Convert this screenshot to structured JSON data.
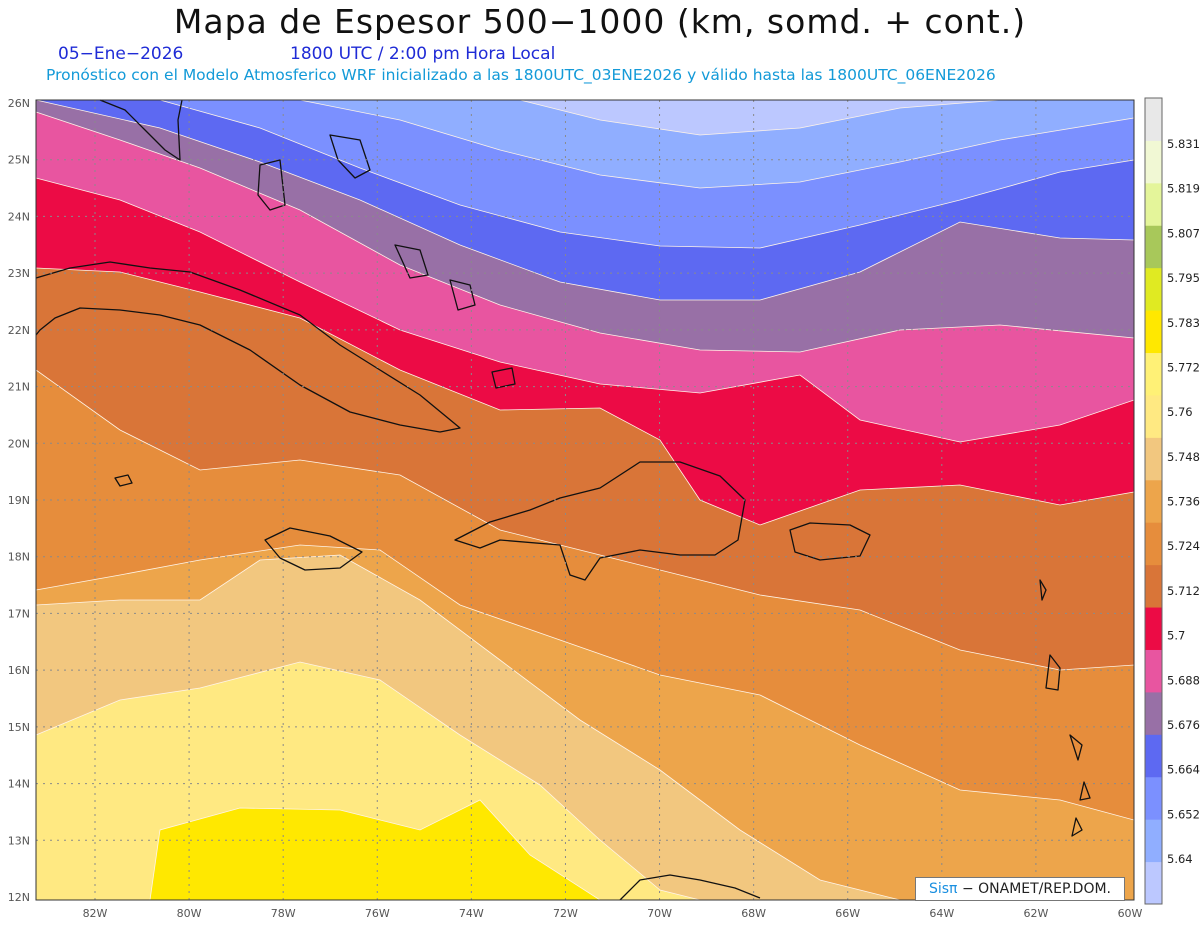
{
  "header": {
    "title": "Mapa de Espesor 500−1000 (km, somd. + cont.)",
    "date": "05−Ene−2026",
    "time": "1800 UTC / 2:00 pm Hora Local",
    "forecast": "Pronóstico con el Modelo Atmosferico WRF inicializado a las 1800UTC_03ENE2026 y válido hasta las  1800UTC_06ENE2026"
  },
  "axes": {
    "lat_labels": [
      "26N",
      "25N",
      "24N",
      "23N",
      "22N",
      "21N",
      "20N",
      "19N",
      "18N",
      "17N",
      "16N",
      "15N",
      "14N",
      "13N",
      "12N"
    ],
    "lon_labels": [
      "82W",
      "80W",
      "78W",
      "76W",
      "74W",
      "72W",
      "70W",
      "68W",
      "66W",
      "64W",
      "62W",
      "60W"
    ]
  },
  "colorbar": {
    "labels": [
      "5.831",
      "5.819",
      "5.807",
      "5.795",
      "5.783",
      "5.772",
      "5.76",
      "5.748",
      "5.736",
      "5.724",
      "5.712",
      "5.7",
      "5.688",
      "5.676",
      "5.664",
      "5.652",
      "5.64"
    ],
    "colors": [
      "#bcc8ff",
      "#90aeff",
      "#7b90ff",
      "#5d69f2",
      "#9870a6",
      "#e855a0",
      "#ec0b45",
      "#d97538",
      "#e68d3c",
      "#eda54b",
      "#f2c77f",
      "#ffe982",
      "#fff176",
      "#ffe800",
      "#e0ea22",
      "#a8c85a",
      "#e4f59a",
      "#f1f8d4",
      "#e8e8e8"
    ]
  },
  "bands": [
    {
      "color": "#bcc8ff",
      "top": [
        [
          36,
          100
        ],
        [
          1134,
          100
        ]
      ]
    },
    {
      "color": "#90aeff",
      "top": [
        [
          36,
          100
        ],
        [
          520,
          100
        ],
        [
          600,
          120
        ],
        [
          700,
          135
        ],
        [
          800,
          128
        ],
        [
          900,
          108
        ],
        [
          1000,
          100
        ],
        [
          1134,
          100
        ]
      ]
    },
    {
      "color": "#7b90ff",
      "top": [
        [
          36,
          100
        ],
        [
          300,
          100
        ],
        [
          400,
          120
        ],
        [
          500,
          150
        ],
        [
          600,
          175
        ],
        [
          700,
          188
        ],
        [
          800,
          182
        ],
        [
          900,
          162
        ],
        [
          1000,
          140
        ],
        [
          1134,
          118
        ]
      ]
    },
    {
      "color": "#5d69f2",
      "top": [
        [
          36,
          100
        ],
        [
          160,
          100
        ],
        [
          260,
          128
        ],
        [
          360,
          168
        ],
        [
          460,
          205
        ],
        [
          560,
          232
        ],
        [
          660,
          246
        ],
        [
          760,
          248
        ],
        [
          860,
          225
        ],
        [
          960,
          200
        ],
        [
          1060,
          172
        ],
        [
          1134,
          160
        ]
      ]
    },
    {
      "color": "#9870a6",
      "top": [
        [
          36,
          100
        ],
        [
          160,
          128
        ],
        [
          260,
          162
        ],
        [
          360,
          200
        ],
        [
          460,
          245
        ],
        [
          560,
          282
        ],
        [
          660,
          300
        ],
        [
          760,
          300
        ],
        [
          860,
          272
        ],
        [
          960,
          222
        ],
        [
          1060,
          238
        ],
        [
          1134,
          240
        ]
      ]
    },
    {
      "color": "#e855a0",
      "top": [
        [
          36,
          112
        ],
        [
          120,
          140
        ],
        [
          200,
          168
        ],
        [
          300,
          210
        ],
        [
          400,
          265
        ],
        [
          500,
          305
        ],
        [
          600,
          333
        ],
        [
          700,
          350
        ],
        [
          800,
          352
        ],
        [
          900,
          330
        ],
        [
          1000,
          325
        ],
        [
          1134,
          338
        ]
      ]
    },
    {
      "color": "#ec0b45",
      "top": [
        [
          36,
          178
        ],
        [
          120,
          200
        ],
        [
          200,
          232
        ],
        [
          300,
          282
        ],
        [
          400,
          330
        ],
        [
          500,
          362
        ],
        [
          600,
          384
        ],
        [
          700,
          393
        ],
        [
          800,
          375
        ],
        [
          860,
          420
        ],
        [
          960,
          442
        ],
        [
          1060,
          425
        ],
        [
          1134,
          400
        ]
      ]
    },
    {
      "color": "#d97538",
      "top": [
        [
          36,
          268
        ],
        [
          120,
          272
        ],
        [
          200,
          292
        ],
        [
          300,
          318
        ],
        [
          400,
          370
        ],
        [
          500,
          410
        ],
        [
          600,
          408
        ],
        [
          660,
          440
        ],
        [
          700,
          500
        ],
        [
          760,
          525
        ],
        [
          860,
          490
        ],
        [
          960,
          485
        ],
        [
          1060,
          505
        ],
        [
          1134,
          492
        ]
      ]
    },
    {
      "color": "#e68d3c",
      "top": [
        [
          36,
          370
        ],
        [
          120,
          430
        ],
        [
          200,
          470
        ],
        [
          300,
          460
        ],
        [
          400,
          475
        ],
        [
          500,
          530
        ],
        [
          600,
          555
        ],
        [
          700,
          580
        ],
        [
          760,
          595
        ],
        [
          860,
          610
        ],
        [
          960,
          650
        ],
        [
          1060,
          670
        ],
        [
          1134,
          665
        ]
      ]
    },
    {
      "color": "#eda54b",
      "top": [
        [
          36,
          590
        ],
        [
          120,
          575
        ],
        [
          200,
          560
        ],
        [
          300,
          545
        ],
        [
          380,
          550
        ],
        [
          460,
          605
        ],
        [
          560,
          640
        ],
        [
          660,
          675
        ],
        [
          760,
          695
        ],
        [
          860,
          745
        ],
        [
          960,
          790
        ],
        [
          1060,
          800
        ],
        [
          1134,
          820
        ]
      ]
    },
    {
      "color": "#f2c77f",
      "top": [
        [
          36,
          605
        ],
        [
          120,
          600
        ],
        [
          200,
          600
        ],
        [
          260,
          560
        ],
        [
          340,
          555
        ],
        [
          420,
          600
        ],
        [
          500,
          660
        ],
        [
          580,
          720
        ],
        [
          660,
          770
        ],
        [
          740,
          830
        ],
        [
          820,
          880
        ],
        [
          900,
          900
        ],
        [
          1134,
          900
        ]
      ]
    },
    {
      "color": "#ffe982",
      "top": [
        [
          36,
          735
        ],
        [
          120,
          700
        ],
        [
          200,
          688
        ],
        [
          300,
          662
        ],
        [
          380,
          680
        ],
        [
          460,
          735
        ],
        [
          540,
          785
        ],
        [
          600,
          840
        ],
        [
          660,
          890
        ],
        [
          700,
          900
        ],
        [
          1134,
          900
        ]
      ]
    },
    {
      "color": "#ffe800",
      "top": [
        [
          150,
          900
        ],
        [
          160,
          830
        ],
        [
          240,
          808
        ],
        [
          340,
          810
        ],
        [
          420,
          830
        ],
        [
          480,
          800
        ],
        [
          530,
          855
        ],
        [
          600,
          900
        ]
      ]
    }
  ],
  "credit": {
    "brand": "Sisπ",
    "text": "− ONAMET/REP.DOM."
  }
}
